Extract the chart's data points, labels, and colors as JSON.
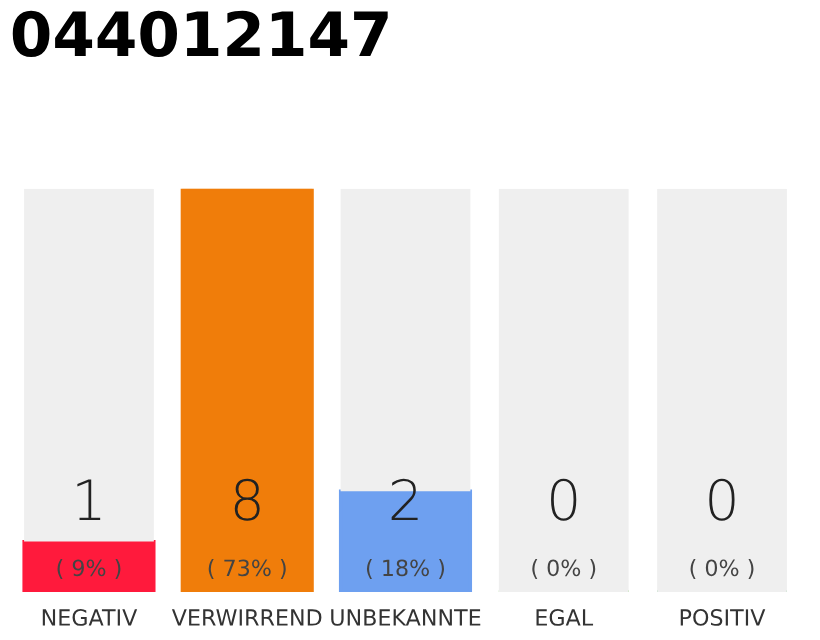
{
  "chart_data": {
    "type": "bar",
    "title": "044012147",
    "stacked": true,
    "categories": [
      "NEGATIV",
      "VERWIRREND",
      "UNBEKANNTE",
      "EGAL",
      "POSITIV"
    ],
    "series": [
      {
        "colors": [
          "#ff1a3c",
          "#f07d0a",
          "#6ea0f0",
          "#7ccc5c",
          "#1aaa3c"
        ],
        "values": [
          1,
          8,
          2,
          0,
          0
        ],
        "value_labels": [
          "1",
          "8",
          "2",
          "0",
          "0"
        ]
      },
      {
        "color": "#efefef",
        "values": [
          7,
          0,
          6,
          8,
          8
        ]
      }
    ],
    "annotations": [
      "( 9% )",
      "( 73% )",
      "( 18% )",
      "( 0% )",
      "( 0% )"
    ],
    "grid": false,
    "legend": false
  }
}
